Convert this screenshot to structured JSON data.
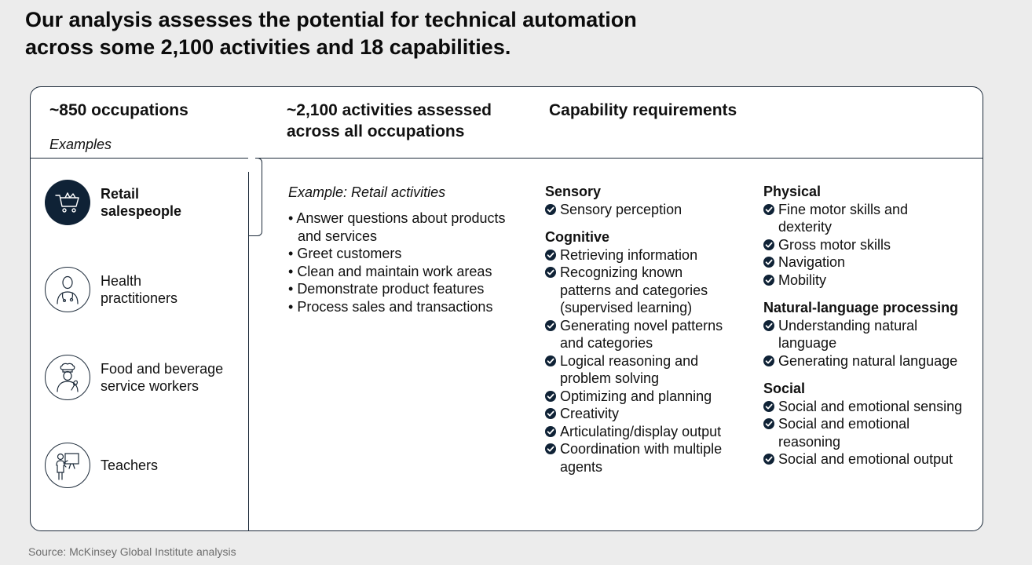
{
  "headline": {
    "line1": "Our analysis assesses the potential for technical automation",
    "line2": "across some 2,100 activities and 18 capabilities."
  },
  "columns": {
    "occupations": {
      "title": "~850 occupations",
      "subtitle": "Examples"
    },
    "activities": {
      "title_line1": "~2,100 activities assessed",
      "title_line2": "across all occupations"
    },
    "capabilities": {
      "title": "Capability requirements"
    }
  },
  "occupations": [
    {
      "line1": "Retail",
      "line2": "salespeople",
      "icon": "shopping-cart-icon",
      "highlighted": true
    },
    {
      "line1": "Health",
      "line2": "practitioners",
      "icon": "doctor-icon",
      "highlighted": false
    },
    {
      "line1": "Food and beverage",
      "line2": "service workers",
      "icon": "chef-icon",
      "highlighted": false
    },
    {
      "line1": "Teachers",
      "line2": "",
      "icon": "teacher-icon",
      "highlighted": false
    }
  ],
  "activities": {
    "example_title": "Example: Retail activities",
    "items": [
      "Answer questions about products and services",
      "Greet customers",
      "Clean and maintain work areas",
      "Demonstrate product features",
      "Process sales and transactions"
    ]
  },
  "capabilities": {
    "left": [
      {
        "title": "Sensory",
        "items": [
          "Sensory perception"
        ]
      },
      {
        "title": "Cognitive",
        "items": [
          "Retrieving information",
          "Recognizing known patterns and categories (supervised learning)",
          "Generating novel patterns and categories",
          "Logical reasoning and problem solving",
          "Optimizing and planning",
          "Creativity",
          "Articulating/display output",
          "Coordination with multiple agents"
        ]
      }
    ],
    "right": [
      {
        "title": "Physical",
        "items": [
          "Fine motor skills and dexterity",
          "Gross motor skills",
          "Navigation",
          "Mobility"
        ]
      },
      {
        "title": "Natural-language processing",
        "items": [
          "Understanding natural language",
          "Generating natural language"
        ]
      },
      {
        "title": "Social",
        "items": [
          "Social and emotional sensing",
          "Social and emotional reasoning",
          "Social and emotional output"
        ]
      }
    ]
  },
  "source": "Source: McKinsey Global Institute analysis",
  "colors": {
    "navy": "#0f2236",
    "border": "#1d2b3a",
    "background": "#ececec"
  }
}
